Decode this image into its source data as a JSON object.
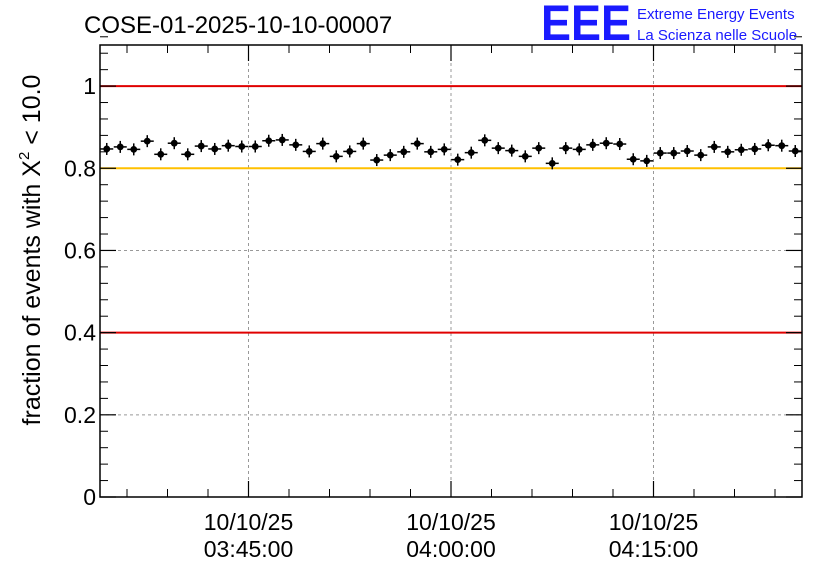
{
  "chart_data": {
    "type": "scatter",
    "title": "COSE-01-2025-10-10-00007",
    "ylabel_parts": {
      "prefix": "fraction of events with ",
      "chi": "X",
      "sup": "2",
      "suffix": " < 10.0"
    },
    "ylim": [
      0,
      1.1
    ],
    "y_ticks": [
      {
        "value": 0,
        "label": "0"
      },
      {
        "value": 0.2,
        "label": "0.2"
      },
      {
        "value": 0.4,
        "label": "0.4"
      },
      {
        "value": 0.6,
        "label": "0.6"
      },
      {
        "value": 0.8,
        "label": "0.8"
      },
      {
        "value": 1.0,
        "label": "1"
      }
    ],
    "xlim_minutes": [
      0,
      52
    ],
    "x_ticks": [
      {
        "minute": 11,
        "date": "10/10/25",
        "time": "03:45:00"
      },
      {
        "minute": 26,
        "date": "10/10/25",
        "time": "04:00:00"
      },
      {
        "minute": 41,
        "date": "10/10/25",
        "time": "04:15:00"
      }
    ],
    "reference_lines": [
      {
        "value": 1.0,
        "color": "#e00000"
      },
      {
        "value": 0.8,
        "color": "#ffc000"
      },
      {
        "value": 0.4,
        "color": "#e00000"
      }
    ],
    "series": [
      {
        "name": "fraction",
        "color": "#000000",
        "x": [
          0.5,
          1.5,
          2.5,
          3.5,
          4.5,
          5.5,
          6.5,
          7.5,
          8.5,
          9.5,
          10.5,
          11.5,
          12.5,
          13.5,
          14.5,
          15.5,
          16.5,
          17.5,
          18.5,
          19.5,
          20.5,
          21.5,
          22.5,
          23.5,
          24.5,
          25.5,
          26.5,
          27.5,
          28.5,
          29.5,
          30.5,
          31.5,
          32.5,
          33.5,
          34.5,
          35.5,
          36.5,
          37.5,
          38.5,
          39.5,
          40.5,
          41.5,
          42.5,
          43.5,
          44.5,
          45.5,
          46.5,
          47.5,
          48.5,
          49.5,
          50.5,
          51.5
        ],
        "y": [
          0.847,
          0.852,
          0.846,
          0.866,
          0.834,
          0.861,
          0.834,
          0.854,
          0.847,
          0.855,
          0.853,
          0.853,
          0.867,
          0.869,
          0.857,
          0.841,
          0.86,
          0.829,
          0.841,
          0.86,
          0.82,
          0.832,
          0.84,
          0.86,
          0.84,
          0.846,
          0.821,
          0.838,
          0.868,
          0.849,
          0.843,
          0.829,
          0.849,
          0.812,
          0.849,
          0.846,
          0.857,
          0.861,
          0.859,
          0.822,
          0.818,
          0.837,
          0.837,
          0.842,
          0.832,
          0.852,
          0.84,
          0.845,
          0.847,
          0.856,
          0.855,
          0.842
        ]
      }
    ]
  },
  "logo": {
    "text": "EEE",
    "line1": "Extreme Energy Events",
    "line2": "La Scienza nelle Scuole"
  }
}
